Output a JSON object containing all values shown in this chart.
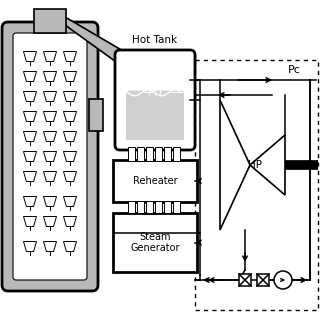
{
  "bg_color": "#ffffff",
  "lc": "#000000",
  "gray": "#b8b8b8",
  "light_gray": "#d0d0d0",
  "hot_tank_label": "Hot Tank",
  "reheater_label": "Reheater",
  "steam_gen_label": "Steam\nGenerator",
  "hp_label": "HP",
  "pc_label": "Pc"
}
